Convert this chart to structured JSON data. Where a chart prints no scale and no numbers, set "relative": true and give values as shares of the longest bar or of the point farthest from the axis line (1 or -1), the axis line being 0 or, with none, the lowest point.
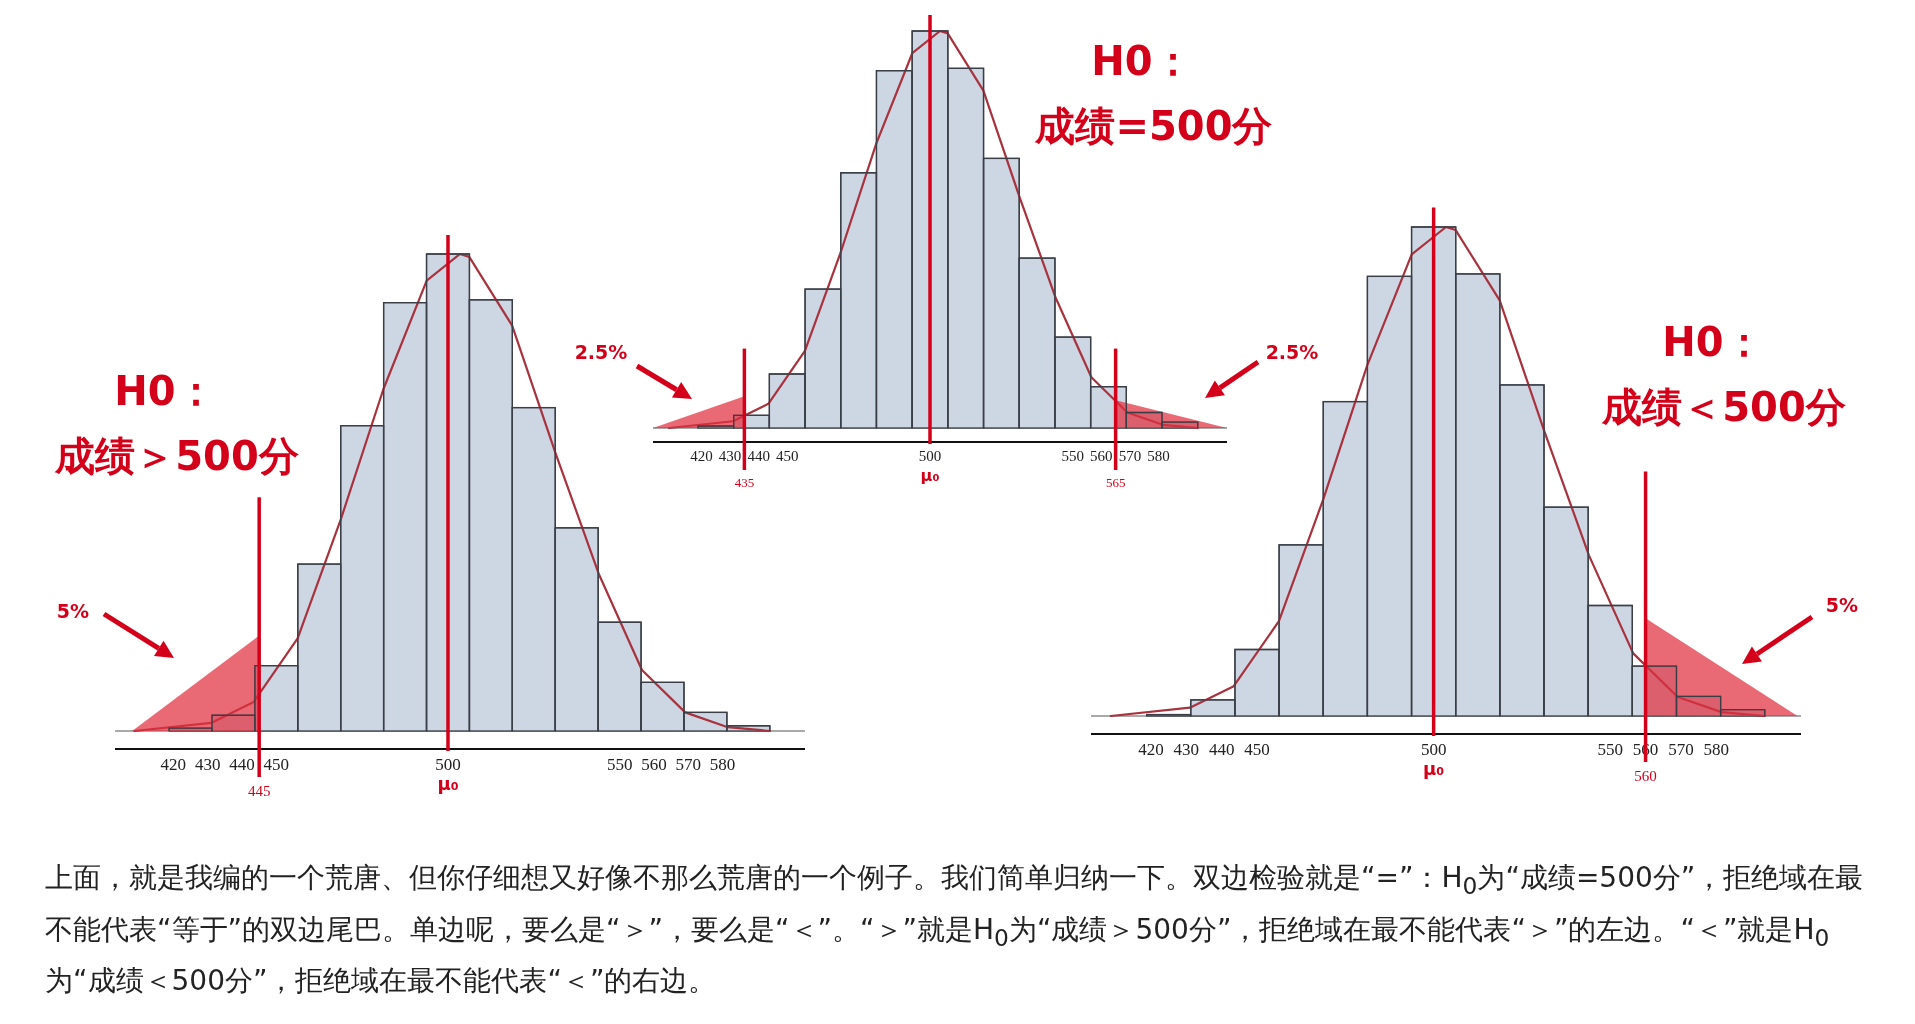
{
  "chart_data": [
    {
      "type": "histogram",
      "title": "H0：",
      "subtitle": "成绩＞500分",
      "relative": true,
      "color": "#cdd6e3",
      "bins": [
        418.75,
        431.25,
        443.75,
        456.25,
        468.75,
        481.25,
        493.75,
        506.25,
        518.75,
        531.25,
        543.75,
        556.25,
        568.75,
        581.25,
        593.75
      ],
      "values": [
        0.006,
        0.033,
        0.137,
        0.35,
        0.64,
        0.898,
        1,
        0.904,
        0.678,
        0.426,
        0.228,
        0.102,
        0.039,
        0.011
      ],
      "xlim": [
        403,
        604
      ],
      "xticks": [
        420,
        430,
        440,
        450,
        500,
        550,
        560,
        570,
        580
      ],
      "series": [
        {
          "type": "line",
          "color": "#a8323e",
          "x": [
            408.6,
            431,
            443.4,
            456.2,
            468.8,
            481.2,
            493.8,
            503.5,
            506.2,
            518.7,
            531.3,
            544,
            556.5,
            569.1,
            581.5,
            593.8
          ],
          "values": [
            0,
            0.017,
            0.061,
            0.194,
            0.444,
            0.717,
            0.944,
            1,
            0.994,
            0.85,
            0.583,
            0.328,
            0.128,
            0.039,
            0.008,
            0
          ]
        },
        {
          "type": "area",
          "color": "#e0303f",
          "x": [
            408,
            445
          ],
          "values": [
            0,
            0.2
          ]
        }
      ],
      "ref_lines": [
        {
          "axis": "x",
          "value": 500,
          "label": "μ₀",
          "color": "#d4001a"
        },
        {
          "axis": "x",
          "value": 445,
          "label": "445",
          "color": "#d4001a"
        }
      ],
      "annotations": [
        "5%"
      ]
    },
    {
      "type": "histogram",
      "title": "H0：",
      "subtitle": "成绩=500分",
      "relative": true,
      "color": "#cdd6e3",
      "bins": [
        418.75,
        431.25,
        443.75,
        456.25,
        468.75,
        481.25,
        493.75,
        506.25,
        518.75,
        531.25,
        543.75,
        556.25,
        568.75,
        581.25,
        593.75
      ],
      "values": [
        0.005,
        0.032,
        0.136,
        0.35,
        0.643,
        0.9,
        1,
        0.906,
        0.679,
        0.428,
        0.229,
        0.104,
        0.039,
        0.015
      ],
      "xlim": [
        403,
        604
      ],
      "xticks": [
        420,
        430,
        440,
        450,
        500,
        550,
        560,
        570,
        580
      ],
      "series": [
        {
          "type": "line",
          "color": "#a8323e",
          "x": [
            408.6,
            431,
            443.4,
            456.2,
            468.8,
            481.2,
            493.8,
            503.5,
            506.2,
            518.7,
            531.3,
            544,
            556.5,
            569.1,
            581.5,
            593.8
          ],
          "values": [
            0,
            0.017,
            0.061,
            0.194,
            0.444,
            0.717,
            0.944,
            1,
            0.994,
            0.85,
            0.583,
            0.328,
            0.128,
            0.039,
            0.008,
            0
          ]
        },
        {
          "type": "area",
          "color": "#e0303f",
          "x": [
            403,
            435
          ],
          "values": [
            0,
            0.08
          ]
        },
        {
          "type": "area",
          "color": "#e0303f",
          "x": [
            565,
            604
          ],
          "values": [
            0.07,
            0
          ]
        }
      ],
      "ref_lines": [
        {
          "axis": "x",
          "value": 500,
          "label": "μ₀",
          "color": "#d4001a"
        },
        {
          "axis": "x",
          "value": 435,
          "label": "435",
          "color": "#d4001a"
        },
        {
          "axis": "x",
          "value": 565,
          "label": "565",
          "color": "#d4001a"
        }
      ],
      "annotations": [
        "2.5%",
        "2.5%"
      ]
    },
    {
      "type": "histogram",
      "title": "H0：",
      "subtitle": "成绩＜500分",
      "relative": true,
      "color": "#cdd6e3",
      "bins": [
        418.75,
        431.25,
        443.75,
        456.25,
        468.75,
        481.25,
        493.75,
        506.25,
        518.75,
        531.25,
        543.75,
        556.25,
        568.75,
        581.25,
        593.75
      ],
      "values": [
        0.003,
        0.033,
        0.136,
        0.35,
        0.643,
        0.899,
        1,
        0.904,
        0.677,
        0.427,
        0.226,
        0.102,
        0.04,
        0.013
      ],
      "xlim": [
        403,
        604
      ],
      "xticks": [
        420,
        430,
        440,
        450,
        500,
        550,
        560,
        570,
        580
      ],
      "series": [
        {
          "type": "line",
          "color": "#a8323e",
          "x": [
            408.6,
            431,
            443.4,
            456.2,
            468.8,
            481.2,
            493.8,
            503.5,
            506.2,
            518.7,
            531.3,
            544,
            556.5,
            569.1,
            581.5,
            593.8
          ],
          "values": [
            0,
            0.017,
            0.061,
            0.194,
            0.444,
            0.717,
            0.944,
            1,
            0.994,
            0.85,
            0.583,
            0.328,
            0.128,
            0.039,
            0.008,
            0
          ]
        },
        {
          "type": "area",
          "color": "#e0303f",
          "x": [
            560,
            603
          ],
          "values": [
            0.2,
            0
          ]
        }
      ],
      "ref_lines": [
        {
          "axis": "x",
          "value": 500,
          "label": "μ₀",
          "color": "#d4001a"
        },
        {
          "axis": "x",
          "value": 560,
          "label": "560",
          "color": "#d4001a"
        }
      ],
      "annotations": [
        "5%"
      ]
    },
    {
      "type": "other",
      "annotations": [
        "上面，就是我编的一个荒唐、但你仔细想又好像不那么荒唐的一个例子。我们简单归纳一下。双边检验就是“=”：H$_{0}$为“成绩=500分”，拒绝域在最不能代表“等于”的双边尾巴。单边呢，要么是“＞”，要么是“＜”。“＞”就是H$_{0}$为“成绩＞500分”，拒绝域在最不能代表“＞”的左边。“＜”就是H$_{0}$为“成绩＜500分”，拒绝域在最不能代表“＜”的右边。"
      ]
    }
  ]
}
